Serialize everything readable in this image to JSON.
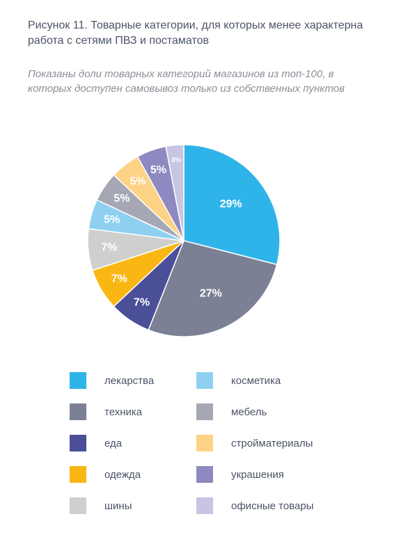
{
  "title": "Рисунок 11. Товарные категории, для которых менее характерна работа с сетями ПВЗ и постаматов",
  "subtitle": "Показаны доли товарных категорий магазинов из топ-100, в которых доступен самовывоз только из собственных пунктов",
  "chart_data": {
    "type": "pie",
    "slices": [
      {
        "label": "лекарства",
        "value": 29,
        "display": "29%",
        "color": "#2fb4e9"
      },
      {
        "label": "техника",
        "value": 27,
        "display": "27%",
        "color": "#7b8094"
      },
      {
        "label": "еда",
        "value": 7,
        "display": "7%",
        "color": "#4b4f97"
      },
      {
        "label": "одежда",
        "value": 7,
        "display": "7%",
        "color": "#fab714"
      },
      {
        "label": "шины",
        "value": 7,
        "display": "7%",
        "color": "#cfd0cd"
      },
      {
        "label": "косметика",
        "value": 5,
        "display": "5%",
        "color": "#8fd0f1"
      },
      {
        "label": "мебель",
        "value": 5,
        "display": "5%",
        "color": "#a5a7b4"
      },
      {
        "label": "стройматериалы",
        "value": 5,
        "display": "5%",
        "color": "#fdd385"
      },
      {
        "label": "украшения",
        "value": 5,
        "display": "5%",
        "color": "#8e89c0"
      },
      {
        "label": "офисные товары",
        "value": 3,
        "display": "3%",
        "color": "#c7c5e2"
      }
    ],
    "legend": {
      "placement": "bottom",
      "columns": [
        [
          "лекарства",
          "техника",
          "еда",
          "одежда",
          "шины"
        ],
        [
          "косметика",
          "мебель",
          "стройматериалы",
          "украшения",
          "офисные товары"
        ]
      ]
    }
  }
}
